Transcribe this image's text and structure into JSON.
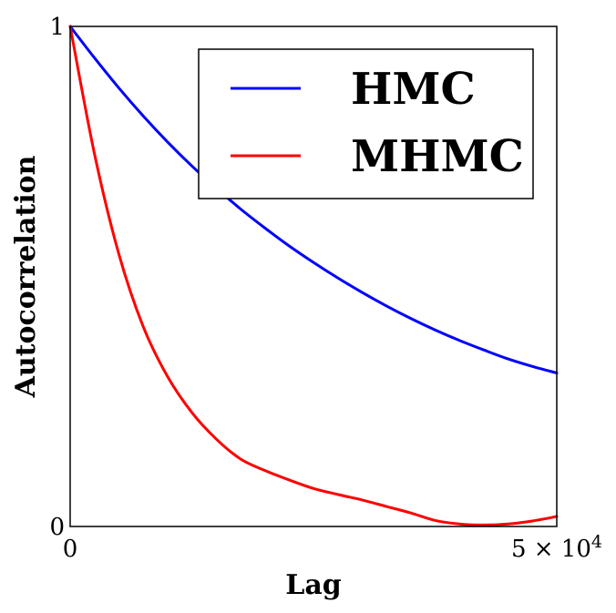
{
  "chart_data": {
    "type": "line",
    "title": "",
    "xlabel": "Lag",
    "ylabel": "Autocorrelation",
    "xlim": [
      0,
      50000
    ],
    "ylim": [
      0,
      1
    ],
    "x_ticks": [
      {
        "value": 0,
        "label": "0"
      },
      {
        "value": 50000,
        "label": "5 × 10",
        "exponent": "4"
      }
    ],
    "y_ticks": [
      {
        "value": 0,
        "label": "0"
      },
      {
        "value": 1,
        "label": "1"
      }
    ],
    "grid": false,
    "legend_position": "top-right",
    "x": [
      0,
      2500,
      5000,
      7500,
      10000,
      12500,
      15000,
      17500,
      20000,
      22500,
      25000,
      27500,
      30000,
      32500,
      35000,
      37500,
      40000,
      42500,
      45000,
      47500,
      50000
    ],
    "series": [
      {
        "name": "HMC",
        "color": "#0000ff",
        "values": [
          1.0,
          0.937,
          0.877,
          0.821,
          0.769,
          0.721,
          0.677,
          0.635,
          0.597,
          0.561,
          0.528,
          0.497,
          0.468,
          0.441,
          0.416,
          0.393,
          0.372,
          0.353,
          0.335,
          0.32,
          0.307
        ]
      },
      {
        "name": "MHMC",
        "color": "#ff0000",
        "values": [
          1.0,
          0.745,
          0.545,
          0.4,
          0.3,
          0.228,
          0.175,
          0.135,
          0.112,
          0.093,
          0.076,
          0.064,
          0.053,
          0.04,
          0.027,
          0.012,
          0.005,
          0.003,
          0.005,
          0.011,
          0.02
        ]
      }
    ]
  }
}
